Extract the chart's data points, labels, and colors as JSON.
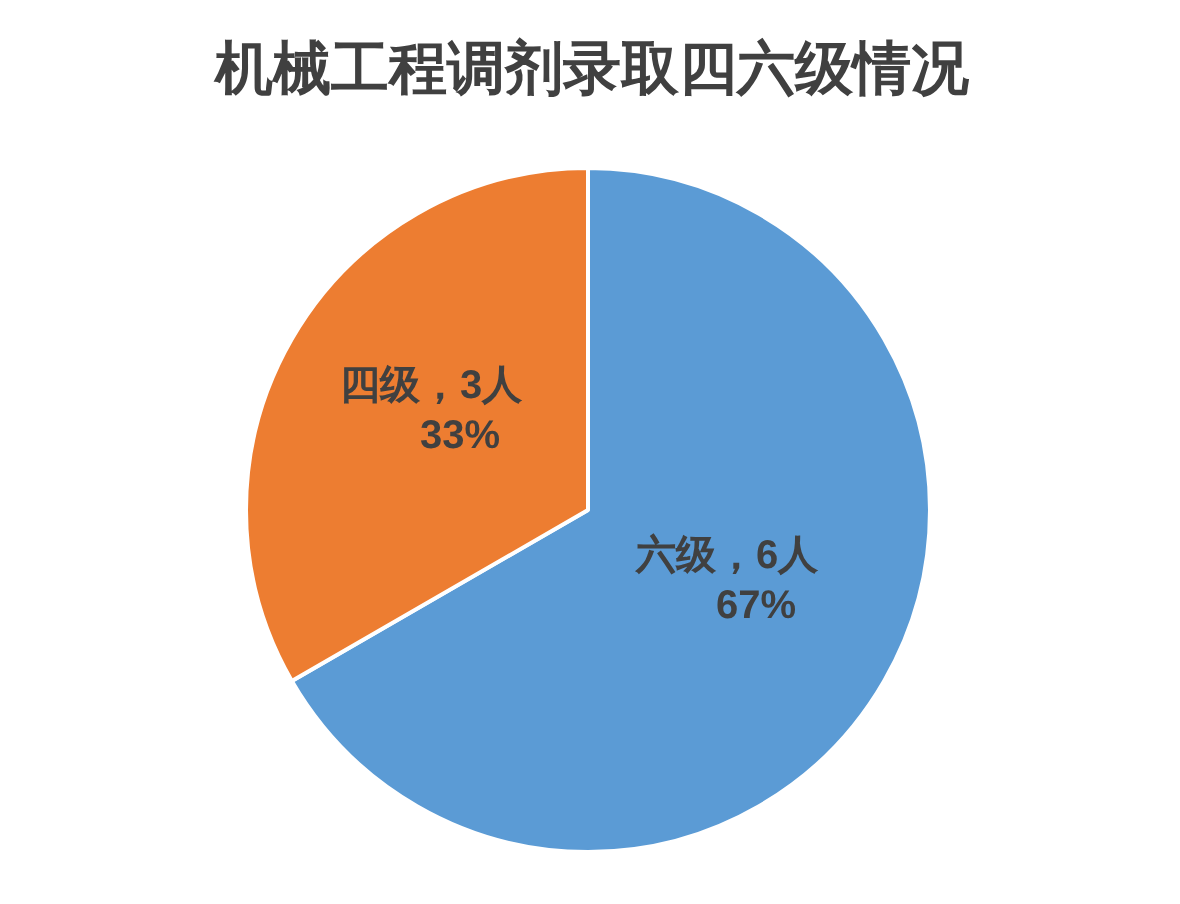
{
  "chart_data": {
    "type": "pie",
    "title": "机械工程调剂录取四六级情况",
    "categories": [
      "六级",
      "四级"
    ],
    "values": [
      6,
      3
    ],
    "colors": [
      "#5b9bd5",
      "#ed7d31"
    ],
    "value_labels": [
      "，6人\n67%",
      "，3人\n33%"
    ]
  }
}
